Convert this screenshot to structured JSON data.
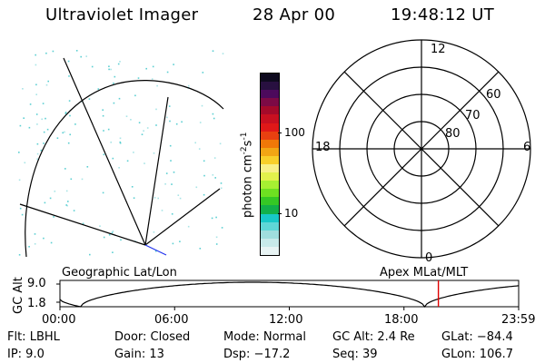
{
  "header": {
    "instrument": "Ultraviolet Imager",
    "date": "28 Apr 00",
    "time": "19:48:12 UT"
  },
  "colorbar": {
    "label": "photon cm",
    "label_exp1": "-2",
    "label_mid": "s",
    "label_exp2": "-1",
    "tick_high": "100",
    "tick_low": "10",
    "colors": [
      "#e8f4f4",
      "#c8eaea",
      "#a0dede",
      "#5fd7d7",
      "#18c8c8",
      "#12b04a",
      "#35c825",
      "#6ee021",
      "#a6f032",
      "#e2f24c",
      "#f8f088",
      "#f8d02a",
      "#f2a614",
      "#f07808",
      "#e84010",
      "#e01818",
      "#c81020",
      "#a40a2a",
      "#7c0a45",
      "#4c0a5c",
      "#281040",
      "#0e0a1e"
    ]
  },
  "polar_plot": {
    "lat_labels": [
      "60",
      "70",
      "80"
    ],
    "mlt_labels": {
      "top": "12",
      "left": "18",
      "right": "6",
      "bottom": "0"
    }
  },
  "timeline": {
    "ylabel": "GC Alt",
    "y_ticks": [
      "9.0",
      "1.8"
    ],
    "left_label": "Geographic Lat/Lon",
    "right_label": "Apex MLat/MLT",
    "x_ticks": [
      "00:00",
      "06:00",
      "12:00",
      "18:00",
      "23:59"
    ],
    "marker_time_fraction": 0.825,
    "marker_color": "#e00000"
  },
  "footer": {
    "flt": "Flt:  LBHL",
    "ip": "IP:  9.0",
    "door": "Door:  Closed",
    "gain": "Gain:  13",
    "mode": "Mode:  Normal",
    "dsp": "Dsp:   −17.2",
    "gcalt": "GC Alt:  2.4 Re",
    "seq": "Seq:  39",
    "glat": "GLat:  −84.4",
    "glon": "GLon:  106.7"
  }
}
